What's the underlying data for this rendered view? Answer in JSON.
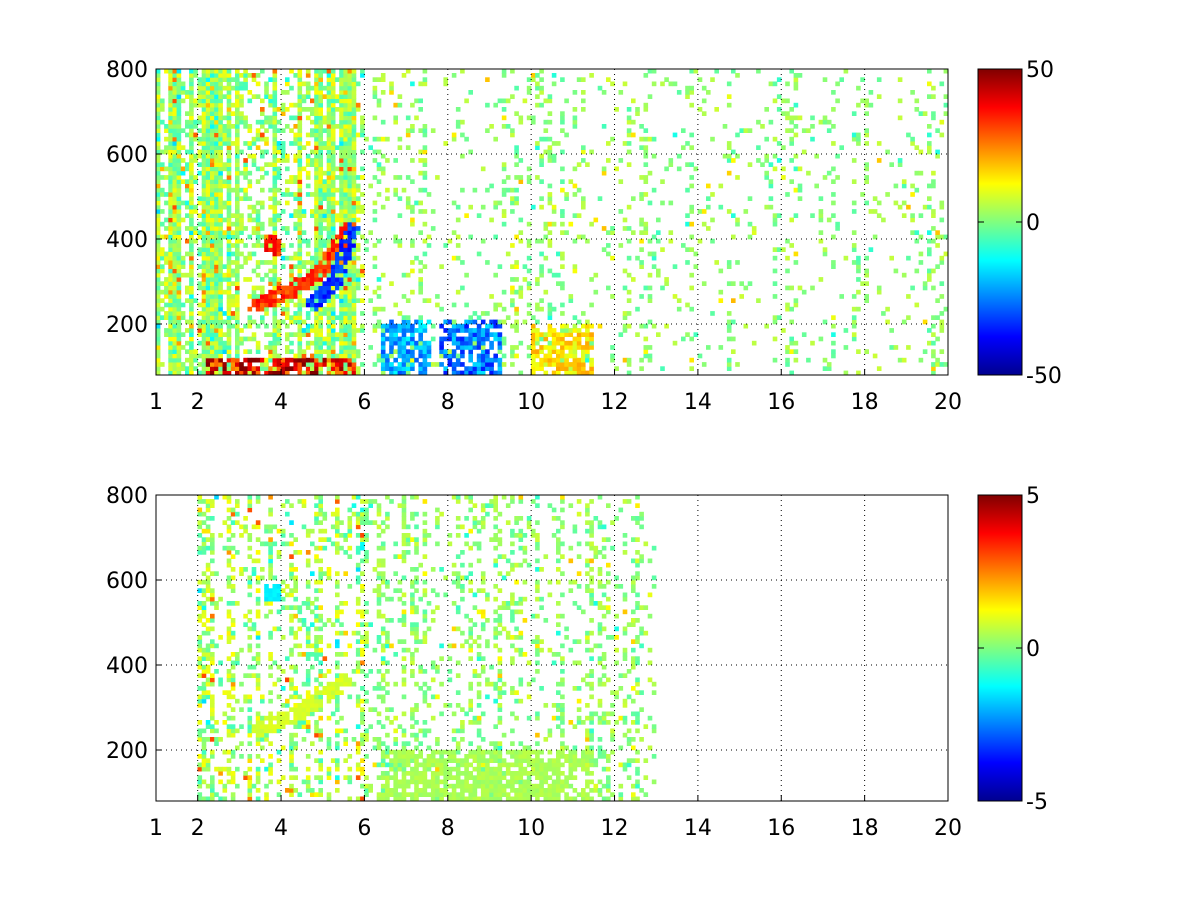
{
  "chart_data": [
    {
      "type": "heatmap",
      "title": "",
      "xlabel": "",
      "ylabel": "",
      "xlim": [
        1,
        20
      ],
      "ylim": [
        80,
        800
      ],
      "xticks": [
        1,
        2,
        4,
        6,
        8,
        10,
        12,
        14,
        16,
        18,
        20
      ],
      "xtick_labels": [
        "1",
        "2",
        "4",
        "6",
        "8",
        "10",
        "12",
        "14",
        "16",
        "18",
        "20"
      ],
      "yticks": [
        200,
        400,
        600,
        800
      ],
      "ytick_labels": [
        "200",
        "400",
        "600",
        "800"
      ],
      "grid": true,
      "colormap": "jet",
      "clim": [
        -50,
        50
      ],
      "colorbar_ticks": [
        -50,
        0,
        50
      ],
      "colorbar_tick_labels": [
        "-50",
        "0",
        "50"
      ],
      "coverage": {
        "dense_x_range": [
          1,
          6
        ],
        "sparse_x_range": [
          6,
          20
        ],
        "dense_fill_fraction": 0.62,
        "sparse_fill_fraction": 0.13
      },
      "features": [
        {
          "kind": "ridge",
          "description": "positive arc",
          "points": [
            [
              3.5,
              250
            ],
            [
              4.3,
              280
            ],
            [
              5.0,
              330
            ],
            [
              5.6,
              420
            ]
          ],
          "value": 38
        },
        {
          "kind": "ridge",
          "description": "negative arc",
          "points": [
            [
              4.8,
              250
            ],
            [
              5.3,
              300
            ],
            [
              5.7,
              420
            ]
          ],
          "value": -38
        },
        {
          "kind": "spot",
          "x": 3.8,
          "y": 385,
          "value": 40
        },
        {
          "kind": "band",
          "x_range": [
            6.4,
            7.6
          ],
          "y_range": [
            80,
            210
          ],
          "value": -25
        },
        {
          "kind": "band",
          "x_range": [
            7.8,
            9.3
          ],
          "y_range": [
            80,
            210
          ],
          "value": -30
        },
        {
          "kind": "band",
          "x_range": [
            10.0,
            11.5
          ],
          "y_range": [
            80,
            200
          ],
          "value": 18
        },
        {
          "kind": "band",
          "x_range": [
            2.2,
            5.8
          ],
          "y_range": [
            80,
            115
          ],
          "value": 45
        }
      ]
    },
    {
      "type": "heatmap",
      "title": "",
      "xlabel": "",
      "ylabel": "",
      "xlim": [
        1,
        20
      ],
      "ylim": [
        80,
        800
      ],
      "xticks": [
        1,
        2,
        4,
        6,
        8,
        10,
        12,
        14,
        16,
        18,
        20
      ],
      "xtick_labels": [
        "1",
        "2",
        "4",
        "6",
        "8",
        "10",
        "12",
        "14",
        "16",
        "18",
        "20"
      ],
      "yticks": [
        200,
        400,
        600,
        800
      ],
      "ytick_labels": [
        "200",
        "400",
        "600",
        "800"
      ],
      "grid": true,
      "colormap": "jet",
      "clim": [
        -5,
        5
      ],
      "colorbar_ticks": [
        -5,
        0,
        5
      ],
      "colorbar_tick_labels": [
        "-5",
        "0",
        "5"
      ],
      "coverage": {
        "dense_x_range": [
          2,
          6
        ],
        "sparse_x_range": [
          6,
          13
        ],
        "dense_fill_fraction": 0.28,
        "sparse_fill_fraction": 0.22
      },
      "features": [
        {
          "kind": "ridge",
          "description": "faint arc",
          "points": [
            [
              3.5,
              250
            ],
            [
              4.5,
              290
            ],
            [
              5.5,
              360
            ]
          ],
          "value": 1
        },
        {
          "kind": "band",
          "x_range": [
            6.4,
            11.5
          ],
          "y_range": [
            80,
            200
          ],
          "value": 0.5
        },
        {
          "kind": "spot",
          "x": 3.8,
          "y": 570,
          "value": -1.5
        }
      ]
    }
  ]
}
